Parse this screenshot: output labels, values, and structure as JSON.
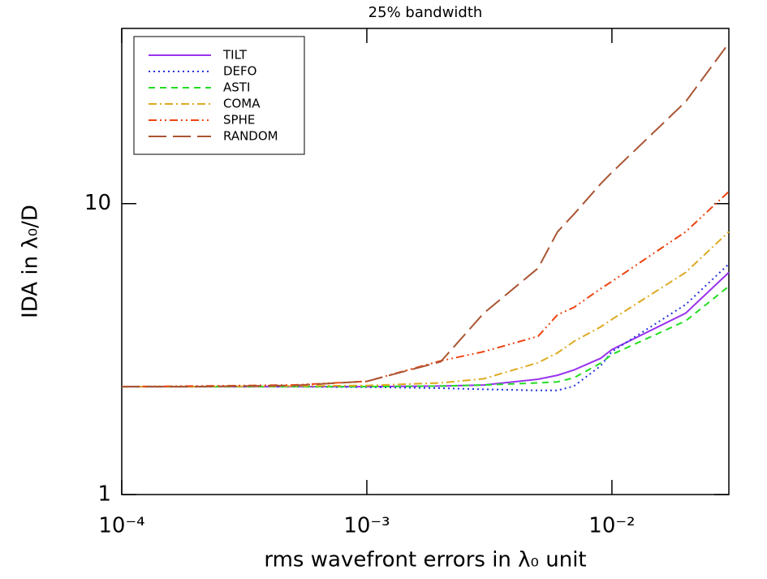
{
  "chart_data": {
    "type": "line",
    "title": "25% bandwidth",
    "x_label": "rms wavefront errors in λ₀ unit",
    "y_label": "IDA in λ₀/D",
    "log_x": true,
    "log_y": true,
    "legend": "upper left",
    "x": [
      0.0001,
      0.0002,
      0.0005,
      0.001,
      0.002,
      0.003,
      0.005,
      0.006,
      0.007,
      0.009,
      0.01,
      0.02,
      0.03
    ],
    "xlim": [
      0.0001,
      0.03
    ],
    "ylim": [
      1,
      40
    ],
    "xticks": [
      {
        "value": 0.0001,
        "label": "10⁻⁴"
      },
      {
        "value": 0.001,
        "label": "10⁻³"
      },
      {
        "value": 0.01,
        "label": "10⁻²"
      }
    ],
    "yticks": [
      1,
      10
    ],
    "series": [
      {
        "name": "TILT",
        "color": "#9933ee",
        "dash": "solid",
        "values": [
          2.35,
          2.35,
          2.35,
          2.35,
          2.36,
          2.38,
          2.49,
          2.57,
          2.68,
          2.94,
          3.15,
          4.2,
          5.8
        ]
      },
      {
        "name": "DEFO",
        "color": "#2233dd",
        "dash": "dotted",
        "values": [
          2.35,
          2.35,
          2.35,
          2.34,
          2.32,
          2.3,
          2.28,
          2.28,
          2.36,
          2.77,
          3.1,
          4.5,
          6.2
        ]
      },
      {
        "name": "ASTI",
        "color": "#22dd22",
        "dash": "dashed",
        "values": [
          2.35,
          2.35,
          2.35,
          2.35,
          2.36,
          2.38,
          2.42,
          2.44,
          2.52,
          2.83,
          3.03,
          3.95,
          5.2
        ]
      },
      {
        "name": "COMA",
        "color": "#ddaa22",
        "dash": "dashdot",
        "values": [
          2.35,
          2.35,
          2.36,
          2.37,
          2.42,
          2.5,
          2.84,
          3.07,
          3.36,
          3.77,
          4.0,
          5.8,
          8.0
        ]
      },
      {
        "name": "SPHE",
        "color": "#ee4411",
        "dash": "dashdotdot",
        "values": [
          2.35,
          2.36,
          2.38,
          2.45,
          2.88,
          3.1,
          3.5,
          4.15,
          4.4,
          5.1,
          5.4,
          8.0,
          11.0
        ]
      },
      {
        "name": "RANDOM",
        "color": "#aa5533",
        "dash": "longdash",
        "values": [
          2.35,
          2.35,
          2.37,
          2.45,
          2.86,
          4.2,
          6.0,
          8.0,
          9.2,
          11.7,
          12.8,
          22.4,
          35.6
        ]
      }
    ]
  }
}
